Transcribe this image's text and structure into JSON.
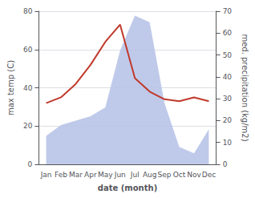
{
  "chart_data": {
    "type": "line",
    "xlabel": "date (month)",
    "ylabel": "max temp (C)",
    "y2label": "med. precipitation (kg/m2)",
    "categories": [
      "Jan",
      "Feb",
      "Mar",
      "Apr",
      "May",
      "Jun",
      "Jul",
      "Aug",
      "Sep",
      "Oct",
      "Nov",
      "Dec"
    ],
    "series": [
      {
        "type": "area",
        "axis": "y2",
        "color": "#b8c4e8",
        "values": [
          13,
          18,
          20,
          22,
          26,
          52,
          68,
          65,
          28,
          8,
          5,
          16
        ]
      },
      {
        "type": "line",
        "color": "#c0392b",
        "values": [
          32,
          35,
          42,
          52,
          64,
          73,
          45,
          38,
          34,
          33,
          35,
          33
        ]
      }
    ],
    "ylim": [
      0,
      80
    ],
    "yticks": [
      0,
      20,
      40,
      60,
      80
    ],
    "y2lim": [
      0,
      70
    ],
    "y2ticks": [
      0,
      10,
      20,
      30,
      40,
      50,
      60,
      70
    ],
    "grid": true
  }
}
